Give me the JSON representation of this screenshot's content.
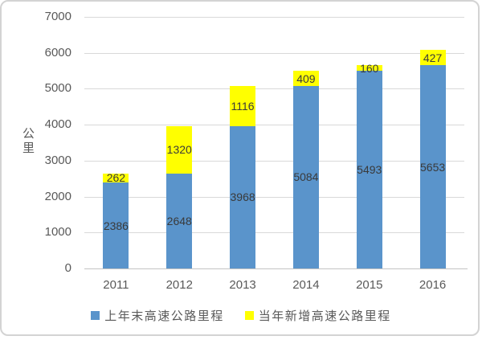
{
  "chart_data": {
    "type": "bar",
    "stacked": true,
    "title": "",
    "xlabel": "",
    "ylabel": "公里",
    "categories": [
      "2011",
      "2012",
      "2013",
      "2014",
      "2015",
      "2016"
    ],
    "series": [
      {
        "name": "上年末高速公路里程",
        "color": "#5a94cb",
        "values": [
          2386,
          2648,
          3968,
          5084,
          5493,
          5653
        ]
      },
      {
        "name": "当年新增高速公路里程",
        "color": "#ffff00",
        "values": [
          262,
          1320,
          1116,
          409,
          160,
          427
        ]
      }
    ],
    "ylim": [
      0,
      7000
    ],
    "ytick_step": 1000,
    "yticks": [
      "0",
      "1000",
      "2000",
      "3000",
      "4000",
      "5000",
      "6000",
      "7000"
    ],
    "grid": true,
    "data_labels": true,
    "legend_position": "bottom",
    "colors": {
      "gridline": "#d9d9d9",
      "axis_line": "#c3c3c3",
      "axis_text": "#595959",
      "data_label_text": "#3a3a3a",
      "background": "#ffffff",
      "frame_border": "#d3d3d3"
    }
  }
}
